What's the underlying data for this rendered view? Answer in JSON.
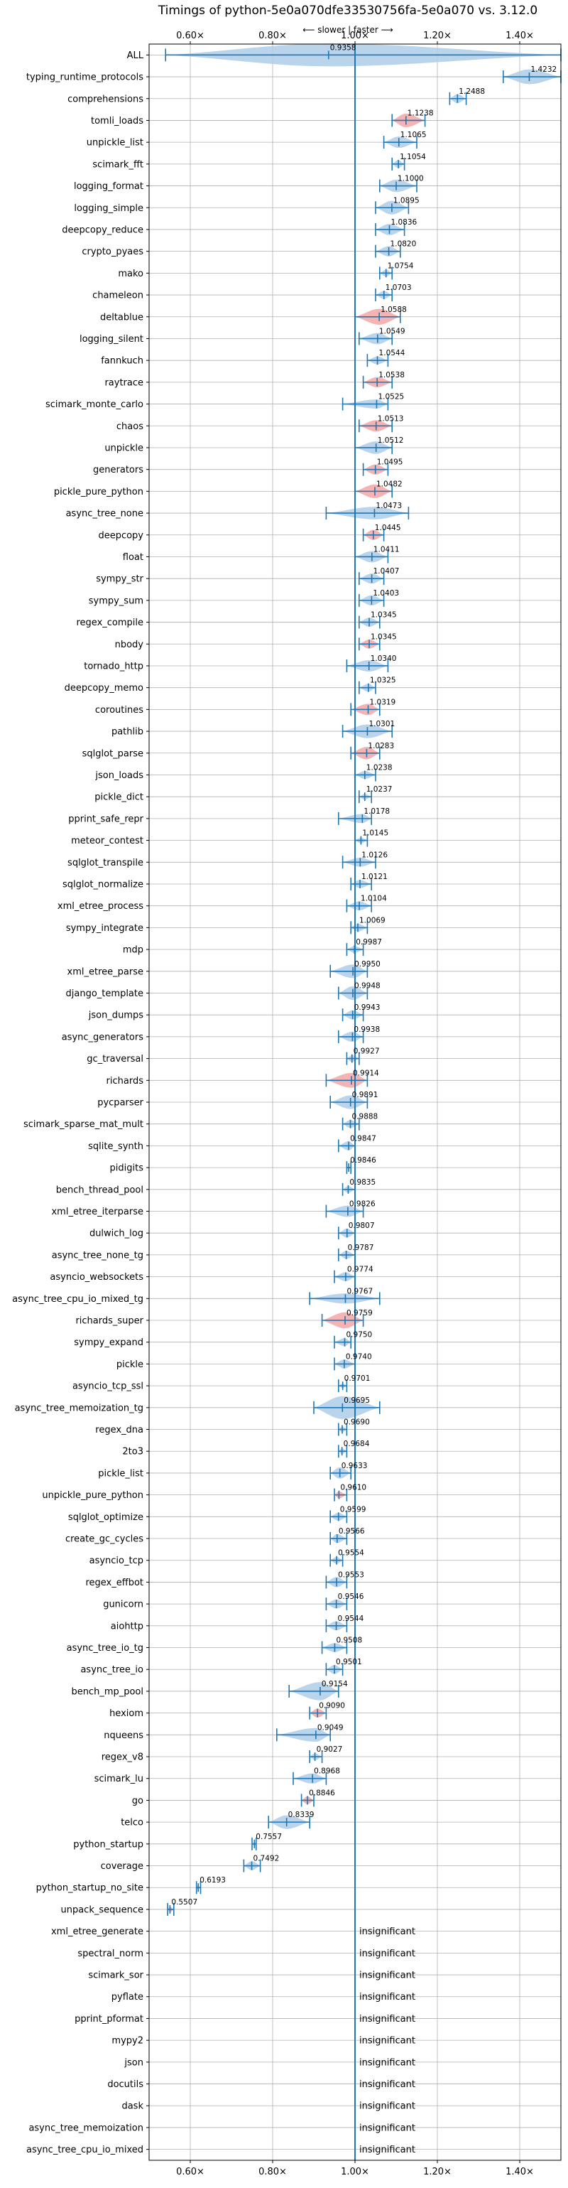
{
  "chart_data": {
    "type": "violin",
    "title": "Timings of python-5e0a070dfe33530756fa-5e0a070 vs. 3.12.0",
    "subtitle": "⟵ slower | faster ⟶",
    "xlim": [
      0.5,
      1.5
    ],
    "xticks": [
      0.6,
      0.8,
      1.0,
      1.2,
      1.4
    ],
    "xtick_labels": [
      "0.60×",
      "0.80×",
      "1.00×",
      "1.20×",
      "1.40×"
    ],
    "reference_line": 1.0,
    "grid": true,
    "colors": {
      "normal": "#aecde8",
      "highlight": "#f4a6a6",
      "line": "#1f77b4"
    },
    "insignificant_text": "insignificant",
    "benchmarks": [
      {
        "name": "ALL",
        "value": 0.9358,
        "min": 0.54,
        "max": 1.5,
        "highlight": false,
        "width": 2
      },
      {
        "name": "typing_runtime_protocols",
        "value": 1.4232,
        "min": 1.36,
        "max": 1.5,
        "highlight": false,
        "width": 1.3
      },
      {
        "name": "comprehensions",
        "value": 1.2488,
        "min": 1.23,
        "max": 1.27,
        "highlight": false,
        "width": 0.8
      },
      {
        "name": "tomli_loads",
        "value": 1.1238,
        "min": 1.09,
        "max": 1.17,
        "highlight": true,
        "width": 1.2
      },
      {
        "name": "unpickle_list",
        "value": 1.1065,
        "min": 1.07,
        "max": 1.15,
        "highlight": false,
        "width": 1
      },
      {
        "name": "scimark_fft",
        "value": 1.1054,
        "min": 1.09,
        "max": 1.12,
        "highlight": false,
        "width": 0.7
      },
      {
        "name": "logging_format",
        "value": 1.1,
        "min": 1.06,
        "max": 1.15,
        "highlight": false,
        "width": 1.1
      },
      {
        "name": "logging_simple",
        "value": 1.0895,
        "min": 1.05,
        "max": 1.13,
        "highlight": false,
        "width": 1.2
      },
      {
        "name": "deepcopy_reduce",
        "value": 1.0836,
        "min": 1.05,
        "max": 1.12,
        "highlight": false,
        "width": 1
      },
      {
        "name": "crypto_pyaes",
        "value": 1.082,
        "min": 1.05,
        "max": 1.11,
        "highlight": false,
        "width": 0.9
      },
      {
        "name": "mako",
        "value": 1.0754,
        "min": 1.06,
        "max": 1.09,
        "highlight": false,
        "width": 0.6
      },
      {
        "name": "chameleon",
        "value": 1.0703,
        "min": 1.05,
        "max": 1.09,
        "highlight": false,
        "width": 0.7
      },
      {
        "name": "deltablue",
        "value": 1.0588,
        "min": 1.0,
        "max": 1.11,
        "highlight": true,
        "width": 1.4
      },
      {
        "name": "logging_silent",
        "value": 1.0549,
        "min": 1.01,
        "max": 1.09,
        "highlight": false,
        "width": 1
      },
      {
        "name": "fannkuch",
        "value": 1.0544,
        "min": 1.03,
        "max": 1.08,
        "highlight": false,
        "width": 0.7
      },
      {
        "name": "raytrace",
        "value": 1.0538,
        "min": 1.02,
        "max": 1.09,
        "highlight": true,
        "width": 0.9
      },
      {
        "name": "scimark_monte_carlo",
        "value": 1.0525,
        "min": 0.97,
        "max": 1.08,
        "highlight": false,
        "width": 0.8
      },
      {
        "name": "chaos",
        "value": 1.0513,
        "min": 1.01,
        "max": 1.09,
        "highlight": true,
        "width": 1
      },
      {
        "name": "unpickle",
        "value": 1.0512,
        "min": 1.0,
        "max": 1.09,
        "highlight": false,
        "width": 1.1
      },
      {
        "name": "generators",
        "value": 1.0495,
        "min": 1.02,
        "max": 1.08,
        "highlight": true,
        "width": 0.9
      },
      {
        "name": "pickle_pure_python",
        "value": 1.0482,
        "min": 1.0,
        "max": 1.09,
        "highlight": true,
        "width": 1.2
      },
      {
        "name": "async_tree_none",
        "value": 1.0473,
        "min": 0.93,
        "max": 1.13,
        "highlight": false,
        "width": 1.1
      },
      {
        "name": "deepcopy",
        "value": 1.0445,
        "min": 1.02,
        "max": 1.07,
        "highlight": true,
        "width": 0.9
      },
      {
        "name": "float",
        "value": 1.0411,
        "min": 1.0,
        "max": 1.08,
        "highlight": false,
        "width": 1
      },
      {
        "name": "sympy_str",
        "value": 1.0407,
        "min": 1.01,
        "max": 1.07,
        "highlight": false,
        "width": 0.9
      },
      {
        "name": "sympy_sum",
        "value": 1.0403,
        "min": 1.01,
        "max": 1.07,
        "highlight": false,
        "width": 0.9
      },
      {
        "name": "regex_compile",
        "value": 1.0345,
        "min": 1.01,
        "max": 1.06,
        "highlight": false,
        "width": 0.8
      },
      {
        "name": "nbody",
        "value": 1.0345,
        "min": 1.01,
        "max": 1.06,
        "highlight": true,
        "width": 0.8
      },
      {
        "name": "tornado_http",
        "value": 1.034,
        "min": 0.98,
        "max": 1.08,
        "highlight": false,
        "width": 1
      },
      {
        "name": "deepcopy_memo",
        "value": 1.0325,
        "min": 1.01,
        "max": 1.05,
        "highlight": false,
        "width": 0.7
      },
      {
        "name": "coroutines",
        "value": 1.0319,
        "min": 0.99,
        "max": 1.06,
        "highlight": true,
        "width": 1
      },
      {
        "name": "pathlib",
        "value": 1.0301,
        "min": 0.97,
        "max": 1.09,
        "highlight": false,
        "width": 1.2
      },
      {
        "name": "sqlglot_parse",
        "value": 1.0283,
        "min": 0.99,
        "max": 1.06,
        "highlight": true,
        "width": 1.1
      },
      {
        "name": "json_loads",
        "value": 1.0238,
        "min": 1.0,
        "max": 1.05,
        "highlight": false,
        "width": 0.7
      },
      {
        "name": "pickle_dict",
        "value": 1.0237,
        "min": 1.01,
        "max": 1.04,
        "highlight": false,
        "width": 0.5
      },
      {
        "name": "pprint_safe_repr",
        "value": 1.0178,
        "min": 0.96,
        "max": 1.04,
        "highlight": false,
        "width": 0.8
      },
      {
        "name": "meteor_contest",
        "value": 1.0145,
        "min": 1.0,
        "max": 1.03,
        "highlight": false,
        "width": 0.5
      },
      {
        "name": "sqlglot_transpile",
        "value": 1.0126,
        "min": 0.97,
        "max": 1.05,
        "highlight": false,
        "width": 0.8
      },
      {
        "name": "sqlglot_normalize",
        "value": 1.0121,
        "min": 0.99,
        "max": 1.04,
        "highlight": false,
        "width": 0.7
      },
      {
        "name": "xml_etree_process",
        "value": 1.0104,
        "min": 0.98,
        "max": 1.04,
        "highlight": false,
        "width": 0.8
      },
      {
        "name": "sympy_integrate",
        "value": 1.0069,
        "min": 0.99,
        "max": 1.03,
        "highlight": false,
        "width": 0.7
      },
      {
        "name": "mdp",
        "value": 0.9987,
        "min": 0.98,
        "max": 1.02,
        "highlight": false,
        "width": 0.6
      },
      {
        "name": "xml_etree_parse",
        "value": 0.995,
        "min": 0.94,
        "max": 1.03,
        "highlight": false,
        "width": 1.2
      },
      {
        "name": "django_template",
        "value": 0.9948,
        "min": 0.96,
        "max": 1.03,
        "highlight": false,
        "width": 1.2
      },
      {
        "name": "json_dumps",
        "value": 0.9943,
        "min": 0.97,
        "max": 1.02,
        "highlight": false,
        "width": 0.8
      },
      {
        "name": "async_generators",
        "value": 0.9938,
        "min": 0.96,
        "max": 1.02,
        "highlight": false,
        "width": 0.9
      },
      {
        "name": "gc_traversal",
        "value": 0.9927,
        "min": 0.98,
        "max": 1.01,
        "highlight": false,
        "width": 0.6
      },
      {
        "name": "richards",
        "value": 0.9914,
        "min": 0.93,
        "max": 1.03,
        "highlight": true,
        "width": 1.3
      },
      {
        "name": "pycparser",
        "value": 0.9891,
        "min": 0.94,
        "max": 1.03,
        "highlight": false,
        "width": 1.2
      },
      {
        "name": "scimark_sparse_mat_mult",
        "value": 0.9888,
        "min": 0.97,
        "max": 1.01,
        "highlight": false,
        "width": 0.7
      },
      {
        "name": "sqlite_synth",
        "value": 0.9847,
        "min": 0.96,
        "max": 1.0,
        "highlight": false,
        "width": 0.8
      },
      {
        "name": "pidigits",
        "value": 0.9846,
        "min": 0.98,
        "max": 0.99,
        "highlight": false,
        "width": 0.3
      },
      {
        "name": "bench_thread_pool",
        "value": 0.9835,
        "min": 0.97,
        "max": 1.0,
        "highlight": false,
        "width": 0.6
      },
      {
        "name": "xml_etree_iterparse",
        "value": 0.9826,
        "min": 0.93,
        "max": 1.02,
        "highlight": false,
        "width": 1
      },
      {
        "name": "dulwich_log",
        "value": 0.9807,
        "min": 0.96,
        "max": 1.0,
        "highlight": false,
        "width": 0.8
      },
      {
        "name": "async_tree_none_tg",
        "value": 0.9787,
        "min": 0.96,
        "max": 1.0,
        "highlight": false,
        "width": 0.7
      },
      {
        "name": "asyncio_websockets",
        "value": 0.9774,
        "min": 0.95,
        "max": 1.0,
        "highlight": false,
        "width": 0.8
      },
      {
        "name": "async_tree_cpu_io_mixed_tg",
        "value": 0.9767,
        "min": 0.89,
        "max": 1.06,
        "highlight": false,
        "width": 0.9
      },
      {
        "name": "richards_super",
        "value": 0.9759,
        "min": 0.92,
        "max": 1.02,
        "highlight": true,
        "width": 1.4
      },
      {
        "name": "sympy_expand",
        "value": 0.975,
        "min": 0.95,
        "max": 0.99,
        "highlight": false,
        "width": 0.7
      },
      {
        "name": "pickle",
        "value": 0.974,
        "min": 0.95,
        "max": 1.0,
        "highlight": false,
        "width": 0.8
      },
      {
        "name": "asyncio_tcp_ssl",
        "value": 0.9701,
        "min": 0.96,
        "max": 0.98,
        "highlight": false,
        "width": 0.4
      },
      {
        "name": "async_tree_memoization_tg",
        "value": 0.9695,
        "min": 0.9,
        "max": 1.06,
        "highlight": false,
        "width": 2
      },
      {
        "name": "regex_dna",
        "value": 0.969,
        "min": 0.96,
        "max": 0.98,
        "highlight": false,
        "width": 0.5
      },
      {
        "name": "2to3",
        "value": 0.9684,
        "min": 0.96,
        "max": 0.98,
        "highlight": false,
        "width": 0.5
      },
      {
        "name": "pickle_list",
        "value": 0.9633,
        "min": 0.94,
        "max": 0.99,
        "highlight": false,
        "width": 1
      },
      {
        "name": "unpickle_pure_python",
        "value": 0.961,
        "min": 0.95,
        "max": 0.98,
        "highlight": true,
        "width": 0.6
      },
      {
        "name": "sqlglot_optimize",
        "value": 0.9599,
        "min": 0.94,
        "max": 0.98,
        "highlight": false,
        "width": 0.7
      },
      {
        "name": "create_gc_cycles",
        "value": 0.9566,
        "min": 0.94,
        "max": 0.98,
        "highlight": false,
        "width": 0.8
      },
      {
        "name": "asyncio_tcp",
        "value": 0.9554,
        "min": 0.94,
        "max": 0.97,
        "highlight": false,
        "width": 0.6
      },
      {
        "name": "regex_effbot",
        "value": 0.9553,
        "min": 0.93,
        "max": 0.98,
        "highlight": false,
        "width": 0.9
      },
      {
        "name": "gunicorn",
        "value": 0.9546,
        "min": 0.93,
        "max": 0.98,
        "highlight": false,
        "width": 0.8
      },
      {
        "name": "aiohttp",
        "value": 0.9544,
        "min": 0.93,
        "max": 0.98,
        "highlight": false,
        "width": 0.8
      },
      {
        "name": "async_tree_io_tg",
        "value": 0.9508,
        "min": 0.92,
        "max": 0.98,
        "highlight": false,
        "width": 0.8
      },
      {
        "name": "async_tree_io",
        "value": 0.9501,
        "min": 0.93,
        "max": 0.97,
        "highlight": false,
        "width": 0.8
      },
      {
        "name": "bench_mp_pool",
        "value": 0.9154,
        "min": 0.84,
        "max": 0.96,
        "highlight": false,
        "width": 1.6
      },
      {
        "name": "hexiom",
        "value": 0.909,
        "min": 0.89,
        "max": 0.93,
        "highlight": true,
        "width": 0.8
      },
      {
        "name": "nqueens",
        "value": 0.9049,
        "min": 0.81,
        "max": 0.94,
        "highlight": false,
        "width": 1.2
      },
      {
        "name": "regex_v8",
        "value": 0.9027,
        "min": 0.89,
        "max": 0.92,
        "highlight": false,
        "width": 0.6
      },
      {
        "name": "scimark_lu",
        "value": 0.8968,
        "min": 0.85,
        "max": 0.93,
        "highlight": false,
        "width": 0.9
      },
      {
        "name": "go",
        "value": 0.8846,
        "min": 0.87,
        "max": 0.9,
        "highlight": true,
        "width": 0.7
      },
      {
        "name": "telco",
        "value": 0.8339,
        "min": 0.79,
        "max": 0.89,
        "highlight": false,
        "width": 1.2
      },
      {
        "name": "python_startup",
        "value": 0.7557,
        "min": 0.75,
        "max": 0.76,
        "highlight": false,
        "width": 0.4
      },
      {
        "name": "coverage",
        "value": 0.7492,
        "min": 0.73,
        "max": 0.77,
        "highlight": false,
        "width": 0.8
      },
      {
        "name": "python_startup_no_site",
        "value": 0.6193,
        "min": 0.615,
        "max": 0.625,
        "highlight": false,
        "width": 0.35
      },
      {
        "name": "unpack_sequence",
        "value": 0.5507,
        "min": 0.545,
        "max": 0.56,
        "highlight": true,
        "width": 0.5
      },
      {
        "name": "xml_etree_generate",
        "value": null,
        "insignificant": true
      },
      {
        "name": "spectral_norm",
        "value": null,
        "insignificant": true
      },
      {
        "name": "scimark_sor",
        "value": null,
        "insignificant": true
      },
      {
        "name": "pyflate",
        "value": null,
        "insignificant": true
      },
      {
        "name": "pprint_pformat",
        "value": null,
        "insignificant": true
      },
      {
        "name": "mypy2",
        "value": null,
        "insignificant": true
      },
      {
        "name": "json",
        "value": null,
        "insignificant": true
      },
      {
        "name": "docutils",
        "value": null,
        "insignificant": true
      },
      {
        "name": "dask",
        "value": null,
        "insignificant": true
      },
      {
        "name": "async_tree_memoization",
        "value": null,
        "insignificant": true
      },
      {
        "name": "async_tree_cpu_io_mixed",
        "value": null,
        "insignificant": true
      }
    ]
  }
}
